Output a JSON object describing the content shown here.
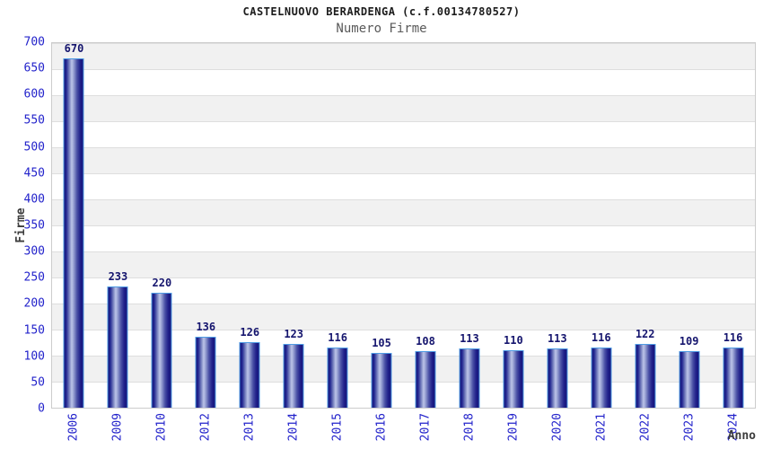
{
  "header": {
    "title": "CASTELNUOVO BERARDENGA (c.f.00134780527)",
    "subtitle": "Numero Firme"
  },
  "chart_data": {
    "type": "bar",
    "title": "CASTELNUOVO BERARDENGA (c.f.00134780527)",
    "subtitle": "Numero Firme",
    "xlabel": "Anno",
    "ylabel": "Firme",
    "categories": [
      "2006",
      "2009",
      "2010",
      "2012",
      "2013",
      "2014",
      "2015",
      "2016",
      "2017",
      "2018",
      "2019",
      "2020",
      "2021",
      "2022",
      "2023",
      "2024"
    ],
    "values": [
      670,
      233,
      220,
      136,
      126,
      123,
      116,
      105,
      108,
      113,
      110,
      113,
      116,
      122,
      109,
      116
    ],
    "ylim": [
      0,
      700
    ],
    "ytick_step": 50,
    "yticks": [
      0,
      50,
      100,
      150,
      200,
      250,
      300,
      350,
      400,
      450,
      500,
      550,
      600,
      650,
      700
    ],
    "grid": "horizontal alternating bands, gridline every 50",
    "legend": "none",
    "bar_labels_shown": true,
    "colors": {
      "axis_label": "#2323cb",
      "bar_value_label": "#15156e",
      "bar_edge": "#4f9ce4",
      "bar_dark": "#14147a",
      "bar_highlight": "#bcc4e8",
      "band_gray": "#f1f1f1",
      "band_white": "#ffffff",
      "gridline": "#dedede",
      "plot_border": "#cccccc",
      "title": "#1c1c1c",
      "subtitle": "#5a5a5a",
      "axis_title": "#3c3c3c"
    }
  }
}
